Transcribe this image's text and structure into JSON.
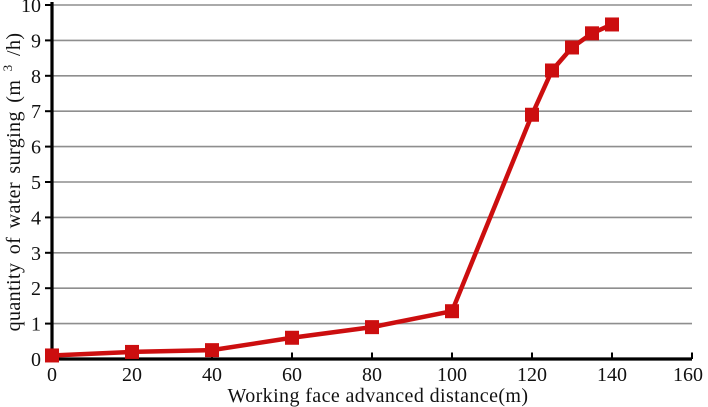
{
  "chart_data": {
    "type": "line",
    "title": "",
    "xlabel": "Working face advanced distance(m)",
    "ylabel": "quantity of water surging (m3/h)",
    "ylabel_parts": {
      "pre": "quantity of water surging (m",
      "sup": "3",
      "post": "/h)"
    },
    "x": [
      0,
      20,
      40,
      60,
      80,
      100,
      120,
      125,
      130,
      135,
      140
    ],
    "y": [
      0.1,
      0.2,
      0.25,
      0.6,
      0.9,
      1.35,
      6.9,
      8.15,
      8.8,
      9.2,
      9.45
    ],
    "xlim": [
      0,
      160
    ],
    "ylim": [
      0,
      10
    ],
    "xticks": [
      0,
      20,
      40,
      60,
      80,
      100,
      120,
      140,
      160
    ],
    "yticks": [
      0,
      1,
      2,
      3,
      4,
      5,
      6,
      7,
      8,
      9,
      10
    ],
    "grid": "horizontal-only",
    "legend_position": "none",
    "line_color": "#cc0e0f",
    "marker": "square",
    "marker_color": "#cc0e0f",
    "marker_size": 14,
    "line_width": 4.5,
    "gridline_color": "#8e8e8e",
    "axis_color": "#000000",
    "background_color": "#ffffff"
  }
}
